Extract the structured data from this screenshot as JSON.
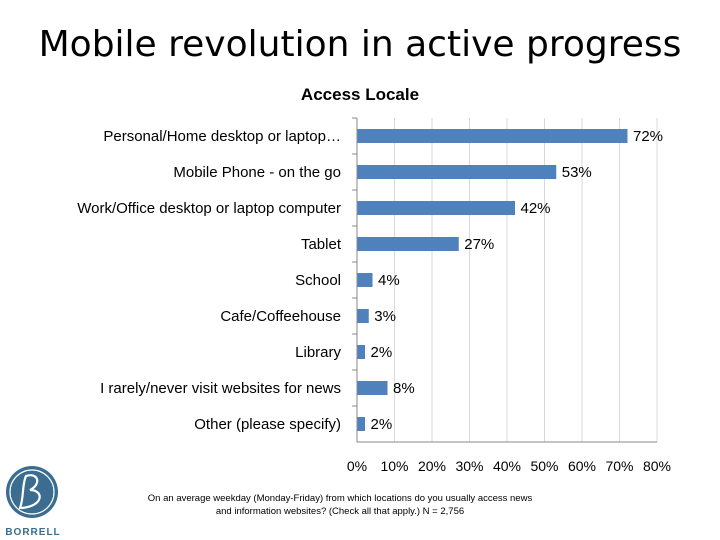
{
  "slide_title": "Mobile revolution in active progress",
  "colors": {
    "bar": "#4f81bd",
    "grid": "#d9d9d9",
    "axis": "#888888",
    "logo": "#3a6d8f"
  },
  "footnote": {
    "line1": "On an average weekday (Monday-Friday) from which locations do you usually access news",
    "line2": "and information websites? (Check all that apply.) N = 2,756"
  },
  "logo": {
    "text": "BORRELL",
    "icon": "borrell-b-logo-icon"
  },
  "chart_data": {
    "type": "bar",
    "orientation": "horizontal",
    "title": "Access Locale",
    "categories": [
      "Personal/Home desktop or laptop…",
      "Mobile Phone - on the go",
      "Work/Office desktop or laptop computer",
      "Tablet",
      "School",
      "Cafe/Coffeehouse",
      "Library",
      "I rarely/never visit websites for news",
      "Other (please specify)"
    ],
    "values": [
      72,
      53,
      42,
      27,
      4,
      3,
      2,
      8,
      2
    ],
    "value_labels": [
      "72%",
      "53%",
      "42%",
      "27%",
      "4%",
      "3%",
      "2%",
      "8%",
      "2%"
    ],
    "xlim": [
      0,
      80
    ],
    "xticks": [
      0,
      10,
      20,
      30,
      40,
      50,
      60,
      70,
      80
    ],
    "xtick_labels": [
      "0%",
      "10%",
      "20%",
      "30%",
      "40%",
      "50%",
      "60%",
      "70%",
      "80%"
    ],
    "grid": true,
    "legend": "none"
  }
}
